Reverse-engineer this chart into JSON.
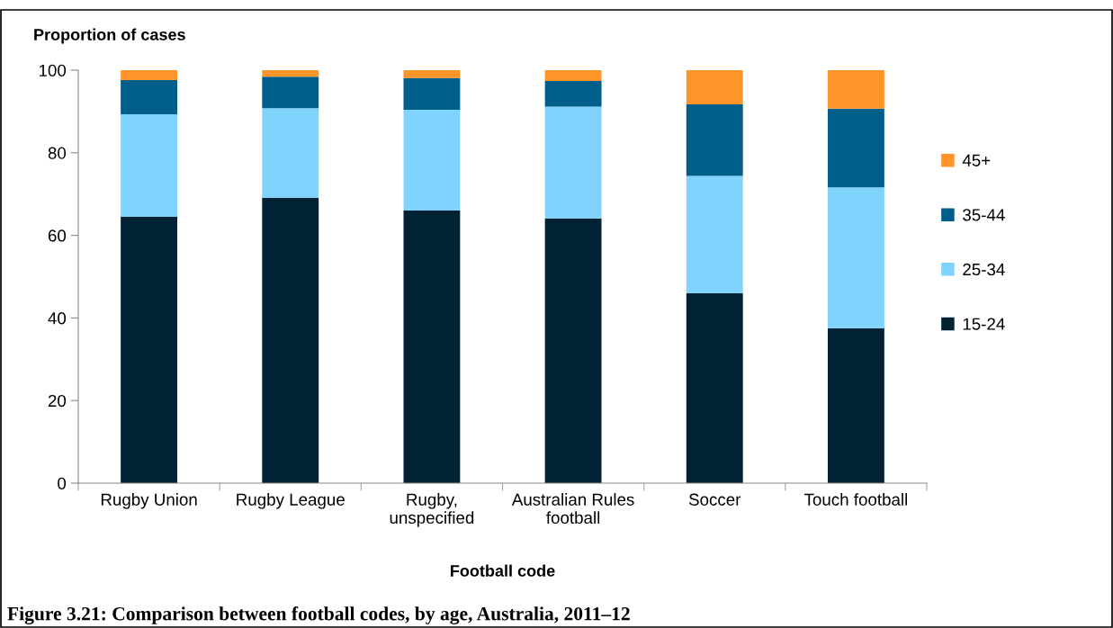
{
  "chart_data": {
    "type": "bar",
    "stacked": true,
    "title": "Figure 3.21: Comparison between football codes, by age, Australia, 2011–12",
    "ylabel": "Proportion of cases",
    "xlabel": "Football code",
    "categories": [
      "Rugby Union",
      "Rugby League",
      "Rugby,\nunspecified",
      "Australian Rules\nfootball",
      "Soccer",
      "Touch football"
    ],
    "series": [
      {
        "name": "15-24",
        "color": "#012234",
        "values": [
          64.5,
          69.1,
          66.0,
          64.1,
          46.0,
          37.5
        ]
      },
      {
        "name": "25-34",
        "color": "#80d3fd",
        "values": [
          24.8,
          21.7,
          24.4,
          27.1,
          28.4,
          34.1
        ]
      },
      {
        "name": "35-44",
        "color": "#005e8b",
        "values": [
          8.3,
          7.6,
          7.7,
          6.2,
          17.3,
          19.1
        ]
      },
      {
        "name": "45+",
        "color": "#ff9428",
        "values": [
          2.4,
          1.6,
          1.9,
          2.6,
          8.3,
          9.3
        ]
      }
    ],
    "ylim": [
      0,
      100
    ],
    "yticks": [
      0,
      20,
      40,
      60,
      80,
      100
    ],
    "grid": false,
    "legend": "right"
  }
}
